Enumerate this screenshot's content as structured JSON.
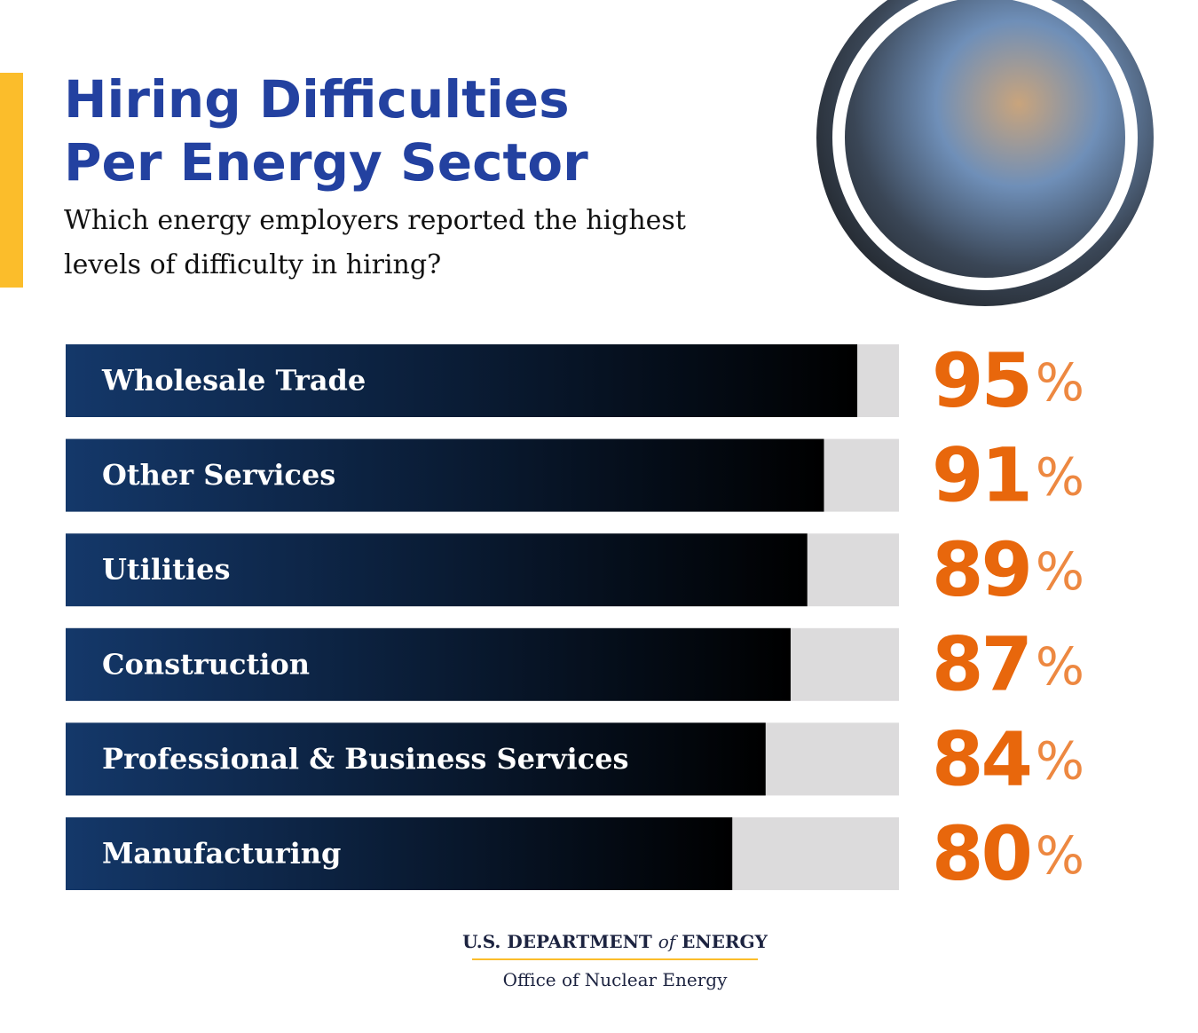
{
  "chart_data": {
    "type": "bar",
    "orientation": "horizontal",
    "title": [
      "Hiring Difficulties",
      "Per Energy Sector"
    ],
    "subtitle": [
      "Which energy employers reported the highest",
      "levels of difficulty in hiring?"
    ],
    "categories": [
      "Wholesale Trade",
      "Other Services",
      "Utilities",
      "Construction",
      "Professional & Business Services",
      "Manufacturing"
    ],
    "values": [
      95,
      91,
      89,
      87,
      84,
      80
    ],
    "value_labels": [
      "95%",
      "91%",
      "89%",
      "87%",
      "84%",
      "80%"
    ],
    "xlim": [
      0,
      100
    ],
    "color": [
      "#14386a",
      "#000000"
    ],
    "track_color": "#dcdbdc",
    "label_color": "#e8670c"
  },
  "footer": {
    "agency": [
      "U.S. DEPARTMENT ",
      "of",
      " ENERGY"
    ],
    "office": "Office of Nuclear Energy"
  }
}
